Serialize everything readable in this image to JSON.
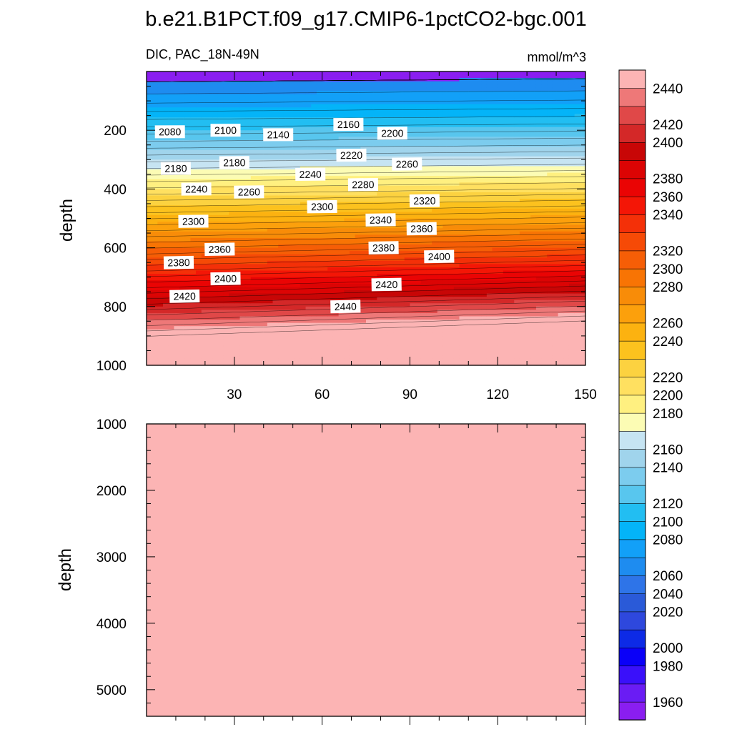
{
  "chart_data": [
    {
      "type": "heatmap",
      "panel": "upper",
      "title": "b.e21.B1PCT.f09_g17.CMIP6-1pctCO2-bgc.001",
      "left_label": "DIC, PAC_18N-49N",
      "right_label": "mmol/m^3",
      "ylabel": "depth",
      "xlabel": "",
      "xlim": [
        0,
        150
      ],
      "ylim": [
        0,
        1000
      ],
      "y_reversed": true,
      "x_ticks": [
        30,
        60,
        90,
        120,
        150
      ],
      "y_ticks": [
        200,
        400,
        600,
        800,
        1000
      ],
      "contour_labels": [
        {
          "text": "2080",
          "x": 8,
          "depth": 205
        },
        {
          "text": "2100",
          "x": 27,
          "depth": 200
        },
        {
          "text": "2140",
          "x": 45,
          "depth": 215
        },
        {
          "text": "2160",
          "x": 69,
          "depth": 180
        },
        {
          "text": "2200",
          "x": 84,
          "depth": 210
        },
        {
          "text": "2180",
          "x": 10,
          "depth": 330
        },
        {
          "text": "2180",
          "x": 30,
          "depth": 310
        },
        {
          "text": "2220",
          "x": 70,
          "depth": 285
        },
        {
          "text": "2260",
          "x": 89,
          "depth": 315
        },
        {
          "text": "2240",
          "x": 56,
          "depth": 350
        },
        {
          "text": "2240",
          "x": 17,
          "depth": 400
        },
        {
          "text": "2260",
          "x": 35,
          "depth": 410
        },
        {
          "text": "2280",
          "x": 74,
          "depth": 385
        },
        {
          "text": "2320",
          "x": 95,
          "depth": 440
        },
        {
          "text": "2300",
          "x": 60,
          "depth": 460
        },
        {
          "text": "2300",
          "x": 16,
          "depth": 510
        },
        {
          "text": "2340",
          "x": 80,
          "depth": 505
        },
        {
          "text": "2360",
          "x": 94,
          "depth": 535
        },
        {
          "text": "2360",
          "x": 25,
          "depth": 605
        },
        {
          "text": "2380",
          "x": 81,
          "depth": 600
        },
        {
          "text": "2400",
          "x": 100,
          "depth": 630
        },
        {
          "text": "2380",
          "x": 11,
          "depth": 650
        },
        {
          "text": "2400",
          "x": 27,
          "depth": 705
        },
        {
          "text": "2420",
          "x": 13,
          "depth": 765
        },
        {
          "text": "2420",
          "x": 82,
          "depth": 725
        },
        {
          "text": "2440",
          "x": 68,
          "depth": 800
        }
      ]
    },
    {
      "type": "heatmap",
      "panel": "lower",
      "ylabel": "depth",
      "xlim": [
        0,
        150
      ],
      "ylim": [
        1000,
        5400
      ],
      "y_reversed": true,
      "y_ticks": [
        1000,
        2000,
        3000,
        4000,
        5000
      ],
      "fill_level": 2450
    }
  ],
  "colorbar": {
    "levels": [
      1960,
      1980,
      2000,
      2020,
      2040,
      2060,
      2080,
      2100,
      2120,
      2140,
      2160,
      2180,
      2200,
      2220,
      2240,
      2260,
      2280,
      2300,
      2320,
      2340,
      2360,
      2380,
      2400,
      2420,
      2440
    ],
    "colors": [
      "#8a1ef0",
      "#6a1cf4",
      "#3a10fa",
      "#0a00f8",
      "#0d2ae6",
      "#2e48dd",
      "#2a5ad8",
      "#2e74e8",
      "#1e8cf0",
      "#12a0f8",
      "#04b4f8",
      "#22bef2",
      "#58c6ee",
      "#7cccee",
      "#a0d4ec",
      "#c6e4f2",
      "#fcfcb4",
      "#fff080",
      "#ffe060",
      "#fcd240",
      "#fcc21e",
      "#fcb210",
      "#fca00c",
      "#f88c08",
      "#f87404",
      "#f65e06",
      "#f64a06",
      "#f43008",
      "#f41606",
      "#ea0404",
      "#dc0404",
      "#c80606",
      "#d42828",
      "#e04848",
      "#ee7878",
      "#fcb4b4"
    ]
  }
}
